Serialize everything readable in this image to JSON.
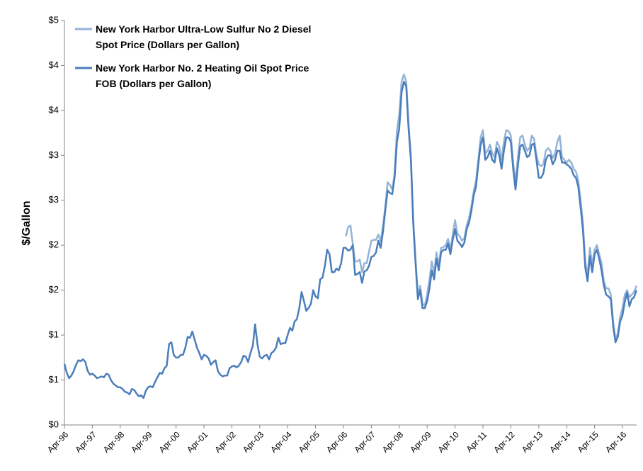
{
  "chart_data": {
    "type": "line",
    "y_label": "$/Gallon",
    "ylim": [
      0,
      4.5
    ],
    "yticks": [
      {
        "value": 0,
        "label": "$0"
      },
      {
        "value": 0.5,
        "label": "$1"
      },
      {
        "value": 1,
        "label": "$1"
      },
      {
        "value": 1.5,
        "label": "$2"
      },
      {
        "value": 2,
        "label": "$2"
      },
      {
        "value": 2.5,
        "label": "$3"
      },
      {
        "value": 3,
        "label": "$3"
      },
      {
        "value": 3.5,
        "label": "$4"
      },
      {
        "value": 4,
        "label": "$4"
      },
      {
        "value": 4.5,
        "label": "$5"
      }
    ],
    "legend": "top-left",
    "categories": [
      "Apr-96",
      null,
      null,
      null,
      null,
      null,
      null,
      null,
      null,
      null,
      null,
      null,
      "Apr-97",
      null,
      null,
      null,
      null,
      null,
      null,
      null,
      null,
      null,
      null,
      null,
      "Apr-98",
      null,
      null,
      null,
      null,
      null,
      null,
      null,
      null,
      null,
      null,
      null,
      "Apr-99",
      null,
      null,
      null,
      null,
      null,
      null,
      null,
      null,
      null,
      null,
      null,
      "Apr-00",
      null,
      null,
      null,
      null,
      null,
      null,
      null,
      null,
      null,
      null,
      null,
      "Apr-01",
      null,
      null,
      null,
      null,
      null,
      null,
      null,
      null,
      null,
      null,
      null,
      "Apr-02",
      null,
      null,
      null,
      null,
      null,
      null,
      null,
      null,
      null,
      null,
      null,
      "Apr-03",
      null,
      null,
      null,
      null,
      null,
      null,
      null,
      null,
      null,
      null,
      null,
      "Apr-04",
      null,
      null,
      null,
      null,
      null,
      null,
      null,
      null,
      null,
      null,
      null,
      "Apr-05",
      null,
      null,
      null,
      null,
      null,
      null,
      null,
      null,
      null,
      null,
      null,
      "Apr-06",
      null,
      null,
      null,
      null,
      null,
      null,
      null,
      null,
      null,
      null,
      null,
      "Apr-07",
      null,
      null,
      null,
      null,
      null,
      null,
      null,
      null,
      null,
      null,
      null,
      "Apr-08",
      null,
      null,
      null,
      null,
      null,
      null,
      null,
      null,
      null,
      null,
      null,
      "Apr-09",
      null,
      null,
      null,
      null,
      null,
      null,
      null,
      null,
      null,
      null,
      null,
      "Apr-10",
      null,
      null,
      null,
      null,
      null,
      null,
      null,
      null,
      null,
      null,
      null,
      "Apr-11",
      null,
      null,
      null,
      null,
      null,
      null,
      null,
      null,
      null,
      null,
      null,
      "Apr-12",
      null,
      null,
      null,
      null,
      null,
      null,
      null,
      null,
      null,
      null,
      null,
      "Apr-13",
      null,
      null,
      null,
      null,
      null,
      null,
      null,
      null,
      null,
      null,
      null,
      "Apr-14",
      null,
      null,
      null,
      null,
      null,
      null,
      null,
      null,
      null,
      null,
      null,
      "Apr-15",
      null,
      null,
      null,
      null,
      null,
      null,
      null,
      null,
      null,
      null,
      null,
      "Apr-16",
      null,
      null,
      null,
      null,
      null,
      null
    ],
    "series": [
      {
        "name": "New York Harbor Ultra-Low Sulfur No 2 Diesel Spot Price (Dollars per Gallon)",
        "color": "#95b3d7",
        "values": [
          null,
          null,
          null,
          null,
          null,
          null,
          null,
          null,
          null,
          null,
          null,
          null,
          null,
          null,
          null,
          null,
          null,
          null,
          null,
          null,
          null,
          null,
          null,
          null,
          null,
          null,
          null,
          null,
          null,
          null,
          null,
          null,
          null,
          null,
          null,
          null,
          null,
          null,
          null,
          null,
          null,
          null,
          null,
          null,
          null,
          null,
          null,
          null,
          null,
          null,
          null,
          null,
          null,
          null,
          null,
          null,
          null,
          null,
          null,
          null,
          null,
          null,
          null,
          null,
          null,
          null,
          null,
          null,
          null,
          null,
          null,
          null,
          null,
          null,
          null,
          null,
          null,
          null,
          null,
          null,
          null,
          null,
          null,
          null,
          null,
          null,
          null,
          null,
          null,
          null,
          null,
          null,
          null,
          null,
          null,
          null,
          null,
          null,
          null,
          null,
          null,
          null,
          null,
          null,
          null,
          null,
          null,
          null,
          null,
          null,
          null,
          null,
          null,
          null,
          null,
          null,
          null,
          null,
          null,
          null,
          null,
          2.1,
          2.2,
          2.22,
          2.02,
          1.82,
          1.82,
          1.84,
          1.7,
          1.8,
          1.8,
          1.93,
          2.05,
          2.06,
          2.06,
          2.12,
          2.04,
          2.22,
          2.43,
          2.7,
          2.67,
          2.62,
          2.8,
          3.28,
          3.45,
          3.82,
          3.9,
          3.82,
          3.35,
          3.0,
          2.3,
          1.85,
          1.45,
          1.55,
          1.35,
          1.33,
          1.45,
          1.62,
          1.82,
          1.68,
          1.92,
          1.78,
          1.97,
          1.98,
          2.0,
          2.07,
          1.95,
          2.12,
          2.28,
          2.13,
          2.1,
          2.05,
          2.08,
          2.22,
          2.3,
          2.43,
          2.6,
          2.72,
          2.95,
          3.2,
          3.28,
          3.02,
          3.05,
          3.12,
          3.02,
          2.98,
          3.15,
          3.1,
          2.95,
          3.15,
          3.28,
          3.27,
          3.22,
          2.92,
          2.7,
          2.97,
          3.2,
          3.22,
          3.12,
          3.05,
          3.08,
          3.22,
          3.18,
          3.0,
          2.9,
          2.88,
          2.9,
          3.05,
          3.08,
          3.05,
          2.97,
          3.02,
          3.15,
          3.22,
          2.98,
          2.95,
          2.92,
          2.95,
          2.92,
          2.85,
          2.82,
          2.72,
          2.5,
          2.25,
          1.82,
          1.66,
          1.97,
          1.78,
          1.95,
          2.0,
          1.9,
          1.8,
          1.6,
          1.52,
          1.52,
          1.45,
          1.15,
          0.95,
          1.02,
          1.2,
          1.3,
          1.45,
          1.5,
          1.42,
          1.45,
          1.48,
          1.55
        ]
      },
      {
        "name": "New York Harbor No. 2 Heating Oil Spot Price FOB (Dollars per Gallon)",
        "color": "#4a7ebb",
        "values": [
          0.68,
          0.58,
          0.52,
          0.55,
          0.6,
          0.67,
          0.72,
          0.71,
          0.73,
          0.7,
          0.6,
          0.56,
          0.57,
          0.55,
          0.52,
          0.53,
          0.54,
          0.53,
          0.57,
          0.56,
          0.5,
          0.46,
          0.44,
          0.42,
          0.42,
          0.4,
          0.37,
          0.36,
          0.34,
          0.4,
          0.39,
          0.35,
          0.32,
          0.33,
          0.3,
          0.38,
          0.42,
          0.43,
          0.42,
          0.48,
          0.53,
          0.58,
          0.57,
          0.63,
          0.66,
          0.9,
          0.92,
          0.78,
          0.75,
          0.75,
          0.78,
          0.78,
          0.86,
          0.98,
          0.97,
          1.04,
          0.95,
          0.86,
          0.8,
          0.73,
          0.78,
          0.77,
          0.74,
          0.67,
          0.7,
          0.72,
          0.6,
          0.56,
          0.54,
          0.55,
          0.55,
          0.63,
          0.65,
          0.66,
          0.64,
          0.66,
          0.7,
          0.77,
          0.76,
          0.7,
          0.8,
          0.88,
          1.12,
          0.9,
          0.76,
          0.74,
          0.77,
          0.78,
          0.73,
          0.8,
          0.82,
          0.86,
          0.97,
          0.9,
          0.91,
          0.91,
          1.0,
          1.08,
          1.05,
          1.15,
          1.18,
          1.3,
          1.48,
          1.38,
          1.27,
          1.3,
          1.35,
          1.5,
          1.43,
          1.41,
          1.62,
          1.64,
          1.77,
          1.95,
          1.9,
          1.7,
          1.7,
          1.74,
          1.72,
          1.8,
          1.97,
          1.97,
          1.94,
          1.95,
          2.0,
          1.67,
          1.68,
          1.7,
          1.58,
          1.71,
          1.72,
          1.77,
          1.87,
          1.88,
          1.92,
          2.05,
          1.97,
          2.15,
          2.39,
          2.61,
          2.58,
          2.57,
          2.75,
          3.15,
          3.3,
          3.7,
          3.82,
          3.77,
          3.3,
          2.95,
          2.25,
          1.8,
          1.4,
          1.5,
          1.3,
          1.3,
          1.38,
          1.52,
          1.72,
          1.62,
          1.85,
          1.72,
          1.92,
          1.95,
          1.95,
          2.02,
          1.9,
          2.06,
          2.18,
          2.05,
          2.02,
          1.98,
          2.03,
          2.18,
          2.25,
          2.38,
          2.55,
          2.65,
          2.9,
          3.12,
          3.2,
          2.95,
          2.98,
          3.05,
          2.95,
          2.92,
          3.08,
          3.0,
          2.85,
          3.05,
          3.2,
          3.2,
          3.15,
          2.85,
          2.62,
          2.88,
          3.1,
          3.12,
          3.05,
          2.98,
          3.0,
          3.12,
          3.13,
          2.95,
          2.75,
          2.75,
          2.8,
          2.95,
          3.0,
          3.0,
          2.9,
          2.95,
          3.05,
          3.05,
          2.92,
          2.92,
          2.9,
          2.88,
          2.85,
          2.78,
          2.75,
          2.65,
          2.42,
          2.17,
          1.75,
          1.6,
          1.88,
          1.7,
          1.9,
          1.95,
          1.85,
          1.72,
          1.55,
          1.45,
          1.43,
          1.4,
          1.1,
          0.92,
          0.98,
          1.15,
          1.22,
          1.37,
          1.47,
          1.32,
          1.4,
          1.42,
          1.5
        ]
      }
    ]
  }
}
